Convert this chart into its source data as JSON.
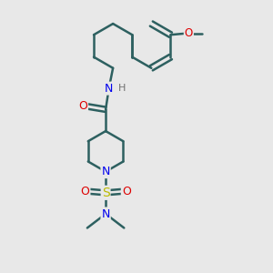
{
  "bg_color": "#e8e8e8",
  "bond_color": "#2d6060",
  "atom_colors": {
    "O": "#dd0000",
    "N": "#0000ee",
    "S": "#bbbb00",
    "H": "#707070",
    "C": "#2d6060"
  },
  "figsize": [
    3.0,
    3.0
  ],
  "dpi": 100
}
